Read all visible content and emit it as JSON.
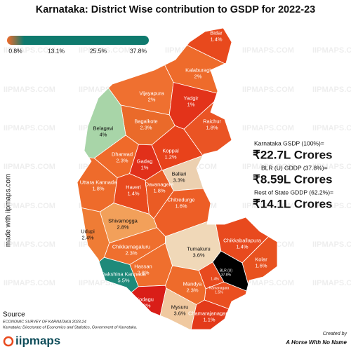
{
  "title": "Karnataka: District Wise contribution to GSDP for 2022-23",
  "legend": {
    "labels": [
      "0.8%",
      "13.1%",
      "25.5%",
      "37.8%"
    ],
    "colors": [
      "#f26b2a",
      "#0f7a6e"
    ]
  },
  "watermark": "IIPMAPS.COM",
  "side_text": "made with iipmaps.com",
  "districts": [
    {
      "name": "Bidar",
      "value_label": "1.4%",
      "color": "#e8491d"
    },
    {
      "name": "Kalaburagi",
      "value_label": "2%",
      "color": "#ee6b2b"
    },
    {
      "name": "Vijayapura",
      "value_label": "2%",
      "color": "#ef7030"
    },
    {
      "name": "Yadgir",
      "value_label": "1%",
      "color": "#e3331a"
    },
    {
      "name": "Bagalkote",
      "value_label": "2.3%",
      "color": "#ea6a2a"
    },
    {
      "name": "Belagavi",
      "value_label": "4%",
      "color": "#a8d5a8"
    },
    {
      "name": "Raichur",
      "value_label": "1.8%",
      "color": "#ea5424"
    },
    {
      "name": "Koppal",
      "value_label": "1.2%",
      "color": "#e8421b"
    },
    {
      "name": "Dharwad",
      "value_label": "2.3%",
      "color": "#ef6a2a"
    },
    {
      "name": "Gadag",
      "value_label": "1%",
      "color": "#e1301a"
    },
    {
      "name": "Ballari",
      "value_label": "3.3%",
      "color": "#ecd0b0"
    },
    {
      "name": "Uttara Kannada",
      "value_label": "1.8%",
      "color": "#ee6b2b"
    },
    {
      "name": "Haveri",
      "value_label": "1.4%",
      "color": "#e84a1e"
    },
    {
      "name": "Davanagere",
      "value_label": "1.8%",
      "color": "#ea5b24"
    },
    {
      "name": "Chitredurge",
      "value_label": "1.6%",
      "color": "#ed5e26"
    },
    {
      "name": "Shivamogga",
      "value_label": "2.8%",
      "color": "#f2a05a"
    },
    {
      "name": "Udupi",
      "value_label": "2.4%",
      "color": "#ef7c35"
    },
    {
      "name": "Chikkamagaluru",
      "value_label": "2.3%",
      "color": "#ef6f2e"
    },
    {
      "name": "Tumakuru",
      "value_label": "3.6%",
      "color": "#f0d8b8"
    },
    {
      "name": "Chikkaballapura",
      "value_label": "1.4%",
      "color": "#e84a1e"
    },
    {
      "name": "Kolar",
      "value_label": "1.6%",
      "color": "#e8521f"
    },
    {
      "name": "Hassan",
      "value_label": "2.3%",
      "color": "#ef6f2e"
    },
    {
      "name": "Dakshina Kannada",
      "value_label": "5.5%",
      "color": "#1f8a7a"
    },
    {
      "name": "BLR (U)",
      "value_label": "37.8%",
      "color": "#000000"
    },
    {
      "name": null,
      "value_label": "1.4%",
      "color": "#e84a1e"
    },
    {
      "name": "Ramanagara",
      "value_label": "1.5%",
      "color": "#ea4f20"
    },
    {
      "name": "Mandya",
      "value_label": "2.3%",
      "color": "#ee6b2b"
    },
    {
      "name": "Kodagu",
      "value_label": "0.8%",
      "color": "#d91e18"
    },
    {
      "name": "Mysuru",
      "value_label": "3.6%",
      "color": "#f0c9a0"
    },
    {
      "name": "Chamarajanagara",
      "value_label": "1.1%",
      "color": "#e33a1a"
    }
  ],
  "summary": [
    {
      "label": "Karnataka GSDP (100%)=",
      "value": "₹22.7L Crores"
    },
    {
      "label": "BLR (U) GDDP (37.8%)=",
      "value": "₹8.59L Crores"
    },
    {
      "label": "Rest of State GDDP (62.2%)=",
      "value": "₹14.1L Crores"
    }
  ],
  "source": {
    "heading": "Source",
    "line1": "ECONOMIC SURVEY OF KARNATAKA 2023-24",
    "line2": "Karnataka: Directorate of Economics and Statistics, Government of Karnataka."
  },
  "logo": "iipmaps",
  "credit": {
    "label": "Created by",
    "name": "A Horse With No Name"
  }
}
